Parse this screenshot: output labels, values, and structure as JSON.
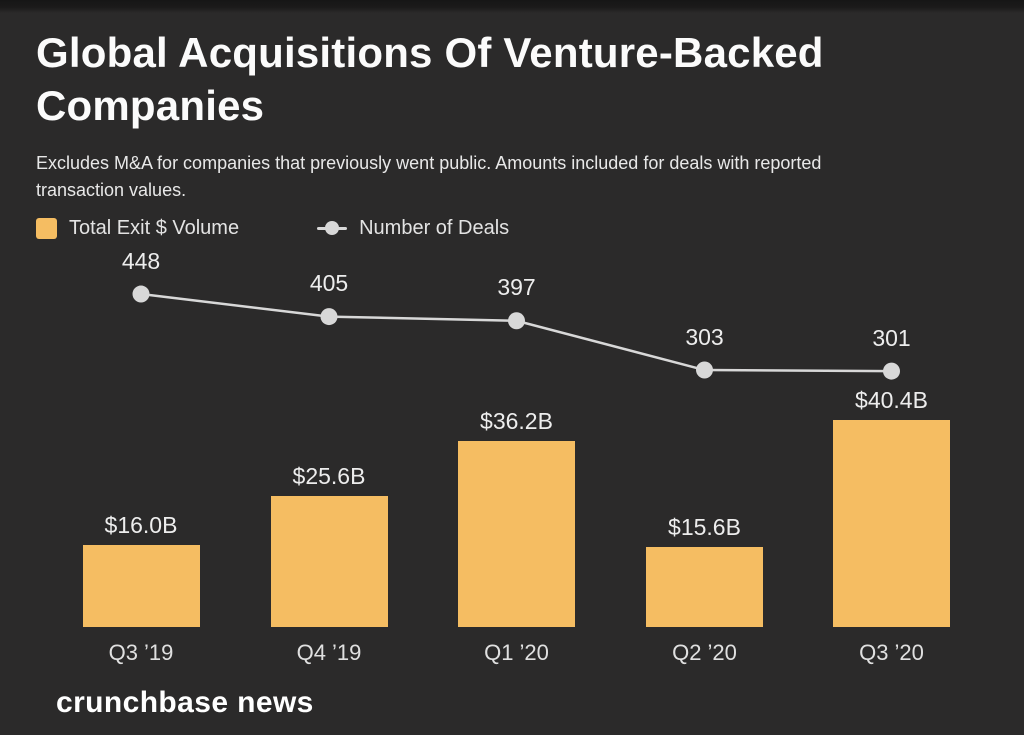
{
  "header": {
    "title": "Global Acquisitions Of Venture-Backed Companies",
    "subtitle": "Excludes M&A for companies that previously went public. Amounts included for deals with reported transaction values."
  },
  "legend": {
    "items": [
      {
        "label": "Total Exit $ Volume",
        "marker": "square",
        "color": "#f5bd62"
      },
      {
        "label": "Number of Deals",
        "marker": "line-dot",
        "color": "#d8d8d8"
      }
    ]
  },
  "footer": {
    "brand": "crunchbase news"
  },
  "chart_data": {
    "type": "bar",
    "title": "Global Acquisitions Of Venture-Backed Companies",
    "subtitle": "Excludes M&A for companies that previously went public. Amounts included for deals with reported transaction values.",
    "categories": [
      "Q3 ’19",
      "Q4 ’19",
      "Q1 ’20",
      "Q2 ’20",
      "Q3 ’20"
    ],
    "series": [
      {
        "name": "Total Exit $ Volume",
        "type": "bar",
        "unit": "USD billions",
        "values": [
          16.0,
          25.6,
          36.2,
          15.6,
          40.4
        ],
        "labels": [
          "$16.0B",
          "$25.6B",
          "$36.2B",
          "$15.6B",
          "$40.4B"
        ],
        "color": "#f5bd62"
      },
      {
        "name": "Number of Deals",
        "type": "line",
        "values": [
          448,
          405,
          397,
          303,
          301
        ],
        "labels": [
          "448",
          "405",
          "397",
          "303",
          "301"
        ],
        "color": "#d8d8d8"
      }
    ],
    "xlabel": "",
    "ylabel": "",
    "grid": false,
    "legend_position": "top-left",
    "background": "#2b2a2a",
    "text_color": "#ededed"
  }
}
